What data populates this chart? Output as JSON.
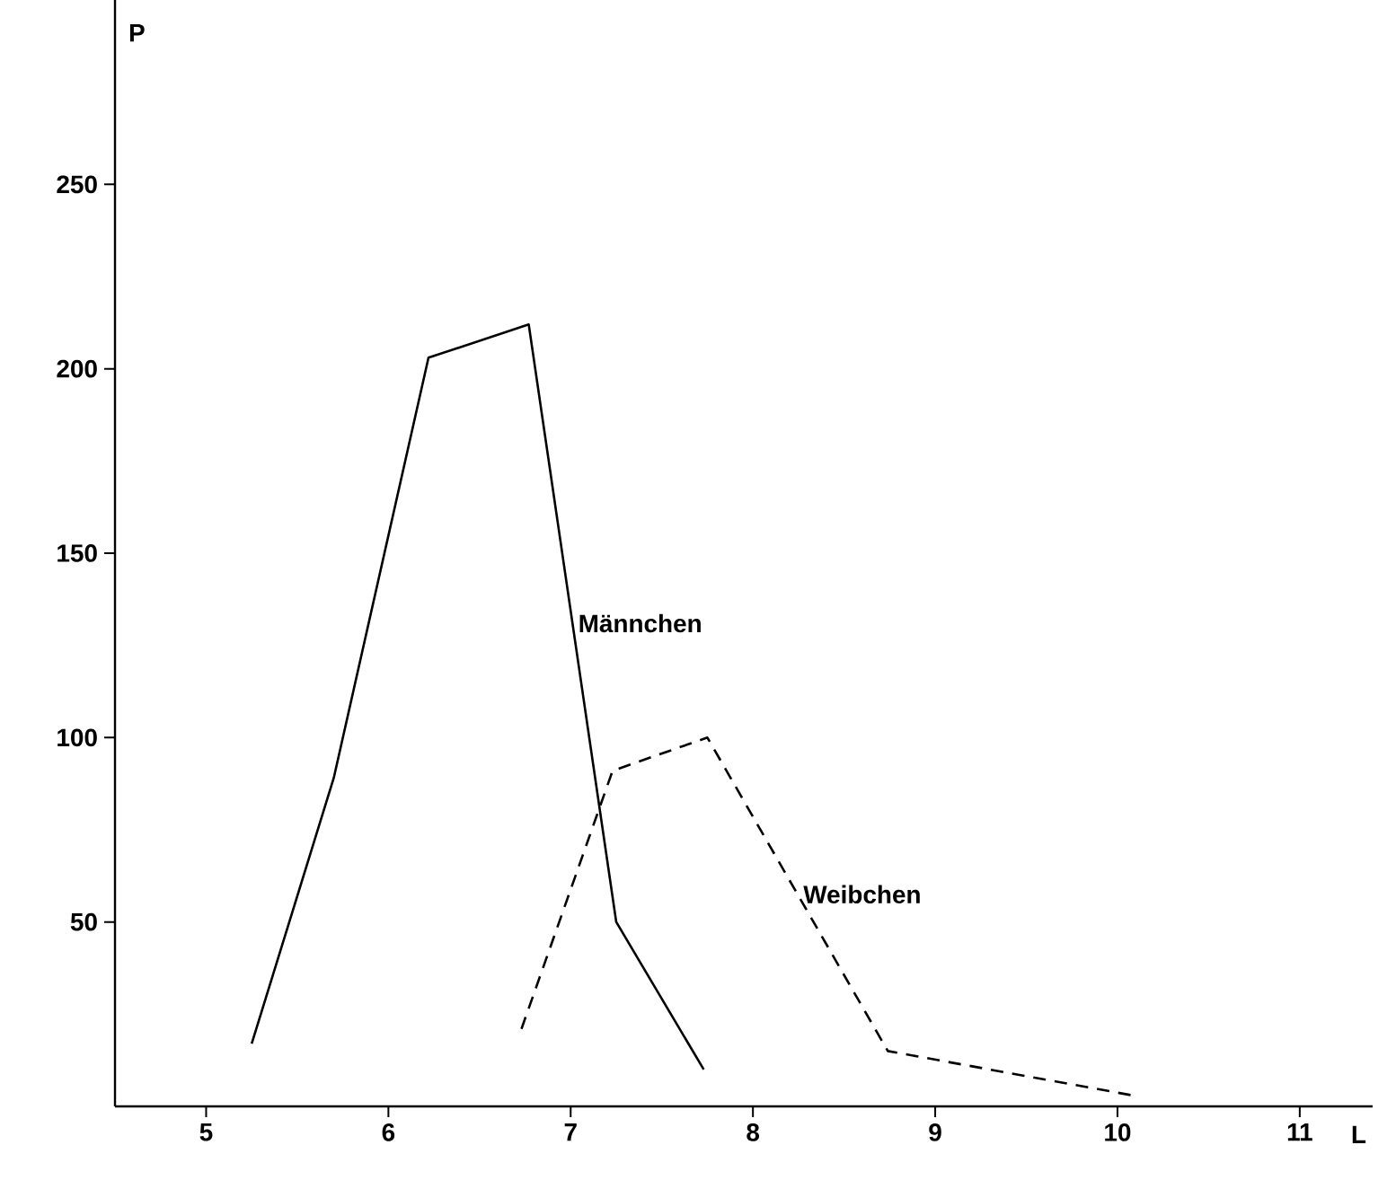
{
  "chart_data": {
    "type": "line",
    "xlabel": "L",
    "ylabel": "P",
    "xlim": [
      4.5,
      11.4
    ],
    "ylim": [
      0,
      300
    ],
    "xticks": [
      5,
      6,
      7,
      8,
      9,
      10,
      11
    ],
    "yticks": [
      50,
      100,
      150,
      200,
      250
    ],
    "grid": false,
    "legend": false,
    "series": [
      {
        "name": "Männchen",
        "color": "#000000",
        "line_style": "solid",
        "x": [
          5.25,
          5.7,
          6.22,
          6.77,
          7.25,
          7.73
        ],
        "values": [
          17,
          89,
          203,
          212,
          50,
          10
        ]
      },
      {
        "name": "Weibchen",
        "color": "#000000",
        "line_style": "dashed",
        "x": [
          6.73,
          7.23,
          7.75,
          8.74,
          10.08
        ],
        "values": [
          21,
          91,
          100,
          15,
          3
        ]
      }
    ]
  }
}
